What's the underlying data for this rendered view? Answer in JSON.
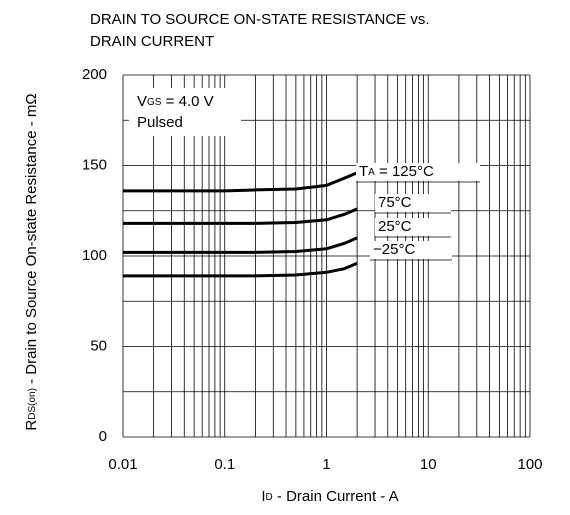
{
  "chart_data": {
    "type": "line",
    "title": [
      "DRAIN TO SOURCE ON-STATE RESISTANCE vs.",
      "DRAIN CURRENT"
    ],
    "xlabel": [
      "I",
      "D",
      " - Drain Current - A"
    ],
    "ylabel": [
      "R",
      "DS(on)",
      " - Drain to Source On-state Resistance - mΩ"
    ],
    "xscale": "log",
    "xlim": [
      0.01,
      100
    ],
    "xticks": [
      0.01,
      0.1,
      1,
      10,
      100
    ],
    "ylim": [
      0,
      200
    ],
    "yticks": [
      0,
      50,
      100,
      150,
      200
    ],
    "yminor": [
      25,
      75,
      125,
      175
    ],
    "grid": true,
    "x": [
      0.01,
      0.02,
      0.05,
      0.1,
      0.2,
      0.5,
      1,
      1.5,
      2
    ],
    "series": [
      {
        "name": [
          "T",
          "A",
          " = 125°C"
        ],
        "color": "#000000",
        "values": [
          136,
          136,
          136,
          136,
          136.5,
          137,
          139,
          143,
          146
        ]
      },
      {
        "name": "75°C",
        "color": "#000000",
        "values": [
          118,
          118,
          118,
          118,
          118,
          118.5,
          120,
          123,
          126
        ]
      },
      {
        "name": "25°C",
        "color": "#000000",
        "values": [
          102,
          102,
          102,
          102,
          102,
          102.5,
          104,
          107,
          110
        ]
      },
      {
        "name": "−25°C",
        "color": "#000000",
        "values": [
          89,
          89,
          89,
          89,
          89,
          89.5,
          91,
          93,
          96
        ]
      }
    ],
    "annotations": [
      [
        "V",
        "GS",
        " = 4.0 V"
      ],
      "Pulsed"
    ]
  }
}
